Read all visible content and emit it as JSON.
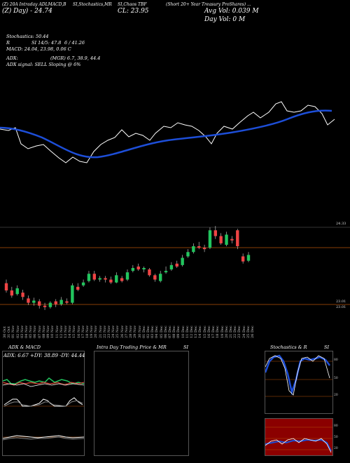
{
  "header": {
    "line1_left": "(Z) 20A Intraday ADLMACD,B",
    "line1_mid": "SI,Stochastics,MR",
    "line1_code": "SI,Chaos TBF",
    "line1_right": "(Short 20+ Year Treasury ProShares) ...",
    "ticker_line": "(Z) Day) - 24.74",
    "close_line": "CL: 23.95",
    "avg_vol": "Avg Vol: 0.039 M",
    "day_vol": "Day Vol: 0   M"
  },
  "stats": {
    "stochastics": "Stochastics: 50.44",
    "rsi_label": "R",
    "rsi_value": "SI 14/5: 47.8",
    "rsi_extra": "6 / 41.26",
    "macd": "MACD: 24.04, 23.98, 0.06  C",
    "adx": "ADX:",
    "adx_mgr": "(MGR) 6.7, 38.9, 44.4",
    "adx_signal": "ADX  signal: SELL  Sloping @ 6%"
  },
  "price_labels": {
    "high": "24.33",
    "low1": "23.01",
    "low2": "23.01"
  },
  "dates": [
    "30 Oct",
    "31 Oct",
    "01 Nov",
    "02 Nov",
    "03 Nov",
    "04 Nov",
    "05 Nov",
    "06 Nov",
    "07 Nov",
    "08 Nov",
    "09 Nov",
    "10 Nov",
    "11 Nov",
    "12 Nov",
    "13 Nov",
    "14 Nov",
    "15 Nov",
    "16 Nov",
    "17 Nov",
    "18 Nov",
    "19 Nov",
    "20 Nov",
    "21 Nov",
    "22 Nov",
    "23 Nov",
    "24 Nov",
    "25 Nov",
    "26 Nov",
    "27 Nov",
    "28 Nov",
    "29 Nov",
    "30 Nov",
    "01 Dec",
    "02 Dec",
    "03 Dec",
    "04 Dec",
    "05 Dec",
    "06 Dec",
    "07 Dec",
    "08 Dec",
    "09 Dec",
    "10 Dec",
    "11 Dec",
    "12 Dec",
    "13 Dec",
    "14 Dec",
    "15 Dec",
    "16 Dec",
    "17 Dec",
    "18 Dec",
    "19 Dec",
    "20 Dec",
    "21 Dec",
    "22 Dec",
    "23 Dec",
    "24 Dec",
    "25 Dec",
    "26 Dec"
  ],
  "panels": {
    "adx_title": "ADX  & MACD",
    "adx_values": "ADX: 6.67  +DY: 38.89  -DY: 44.44",
    "intraday_title": "Intra  Day Trading Price  & MR",
    "intraday_si": "SI",
    "stoch_title": "Stochastics & R",
    "stoch_si": "SI"
  },
  "stoch_axis": [
    "80",
    "50",
    "20"
  ],
  "rsi_axis": [
    "80",
    "50",
    "20"
  ],
  "colors": {
    "bull": "#22c55e",
    "bear": "#ef4444",
    "ema": "#1d4ed8",
    "red_bg": "#8b0000",
    "axis_orange": "#b45309"
  },
  "candles": [
    {
      "o": 23.55,
      "c": 23.45,
      "h": 23.6,
      "l": 23.42
    },
    {
      "o": 23.45,
      "c": 23.38,
      "h": 23.5,
      "l": 23.35
    },
    {
      "o": 23.4,
      "c": 23.48,
      "h": 23.52,
      "l": 23.38
    },
    {
      "o": 23.42,
      "c": 23.36,
      "h": 23.46,
      "l": 23.32
    },
    {
      "o": 23.34,
      "c": 23.28,
      "h": 23.38,
      "l": 23.25
    },
    {
      "o": 23.28,
      "c": 23.31,
      "h": 23.35,
      "l": 23.24
    },
    {
      "o": 23.3,
      "c": 23.24,
      "h": 23.33,
      "l": 23.2
    },
    {
      "o": 23.24,
      "c": 23.22,
      "h": 23.28,
      "l": 23.18
    },
    {
      "o": 23.22,
      "c": 23.28,
      "h": 23.3,
      "l": 23.2
    },
    {
      "o": 23.3,
      "c": 23.26,
      "h": 23.33,
      "l": 23.22
    },
    {
      "o": 23.26,
      "c": 23.32,
      "h": 23.36,
      "l": 23.24
    },
    {
      "o": 23.3,
      "c": 23.28,
      "h": 23.34,
      "l": 23.26
    },
    {
      "o": 23.28,
      "c": 23.52,
      "h": 23.55,
      "l": 23.26
    },
    {
      "o": 23.5,
      "c": 23.46,
      "h": 23.55,
      "l": 23.44
    },
    {
      "o": 23.52,
      "c": 23.56,
      "h": 23.6,
      "l": 23.5
    },
    {
      "o": 23.58,
      "c": 23.68,
      "h": 23.72,
      "l": 23.56
    },
    {
      "o": 23.68,
      "c": 23.6,
      "h": 23.72,
      "l": 23.58
    },
    {
      "o": 23.6,
      "c": 23.62,
      "h": 23.65,
      "l": 23.57
    },
    {
      "o": 23.62,
      "c": 23.6,
      "h": 23.65,
      "l": 23.56
    },
    {
      "o": 23.6,
      "c": 23.56,
      "h": 23.64,
      "l": 23.54
    },
    {
      "o": 23.56,
      "c": 23.66,
      "h": 23.7,
      "l": 23.55
    },
    {
      "o": 23.62,
      "c": 23.58,
      "h": 23.65,
      "l": 23.56
    },
    {
      "o": 23.6,
      "c": 23.7,
      "h": 23.74,
      "l": 23.58
    },
    {
      "o": 23.72,
      "c": 23.76,
      "h": 23.8,
      "l": 23.7
    },
    {
      "o": 23.78,
      "c": 23.74,
      "h": 23.82,
      "l": 23.72
    },
    {
      "o": 23.74,
      "c": 23.76,
      "h": 23.78,
      "l": 23.7
    },
    {
      "o": 23.74,
      "c": 23.66,
      "h": 23.76,
      "l": 23.64
    },
    {
      "o": 23.66,
      "c": 23.6,
      "h": 23.68,
      "l": 23.57
    },
    {
      "o": 23.58,
      "c": 23.68,
      "h": 23.72,
      "l": 23.56
    },
    {
      "o": 23.7,
      "c": 23.72,
      "h": 23.78,
      "l": 23.68
    },
    {
      "o": 23.74,
      "c": 23.8,
      "h": 23.84,
      "l": 23.72
    },
    {
      "o": 23.82,
      "c": 23.78,
      "h": 23.86,
      "l": 23.76
    },
    {
      "o": 23.8,
      "c": 23.9,
      "h": 23.94,
      "l": 23.78
    },
    {
      "o": 23.92,
      "c": 23.98,
      "h": 24.02,
      "l": 23.9
    },
    {
      "o": 23.98,
      "c": 24.06,
      "h": 24.1,
      "l": 23.96
    },
    {
      "o": 24.06,
      "c": 24.04,
      "h": 24.12,
      "l": 24.02
    },
    {
      "o": 24.04,
      "c": 24.02,
      "h": 24.08,
      "l": 23.98
    },
    {
      "o": 24.04,
      "c": 24.28,
      "h": 24.32,
      "l": 24.02
    },
    {
      "o": 24.28,
      "c": 24.2,
      "h": 24.34,
      "l": 24.16
    },
    {
      "o": 24.2,
      "c": 24.1,
      "h": 24.24,
      "l": 24.08
    },
    {
      "o": 24.08,
      "c": 24.22,
      "h": 24.26,
      "l": 24.06
    },
    {
      "o": 24.16,
      "c": 24.14,
      "h": 24.2,
      "l": 24.1
    },
    {
      "o": 24.28,
      "c": 24.06,
      "h": 24.3,
      "l": 24.02
    },
    {
      "o": 23.92,
      "c": 23.85,
      "h": 23.96,
      "l": 23.82
    },
    {
      "o": 23.86,
      "c": 23.94,
      "h": 23.98,
      "l": 23.84
    }
  ]
}
